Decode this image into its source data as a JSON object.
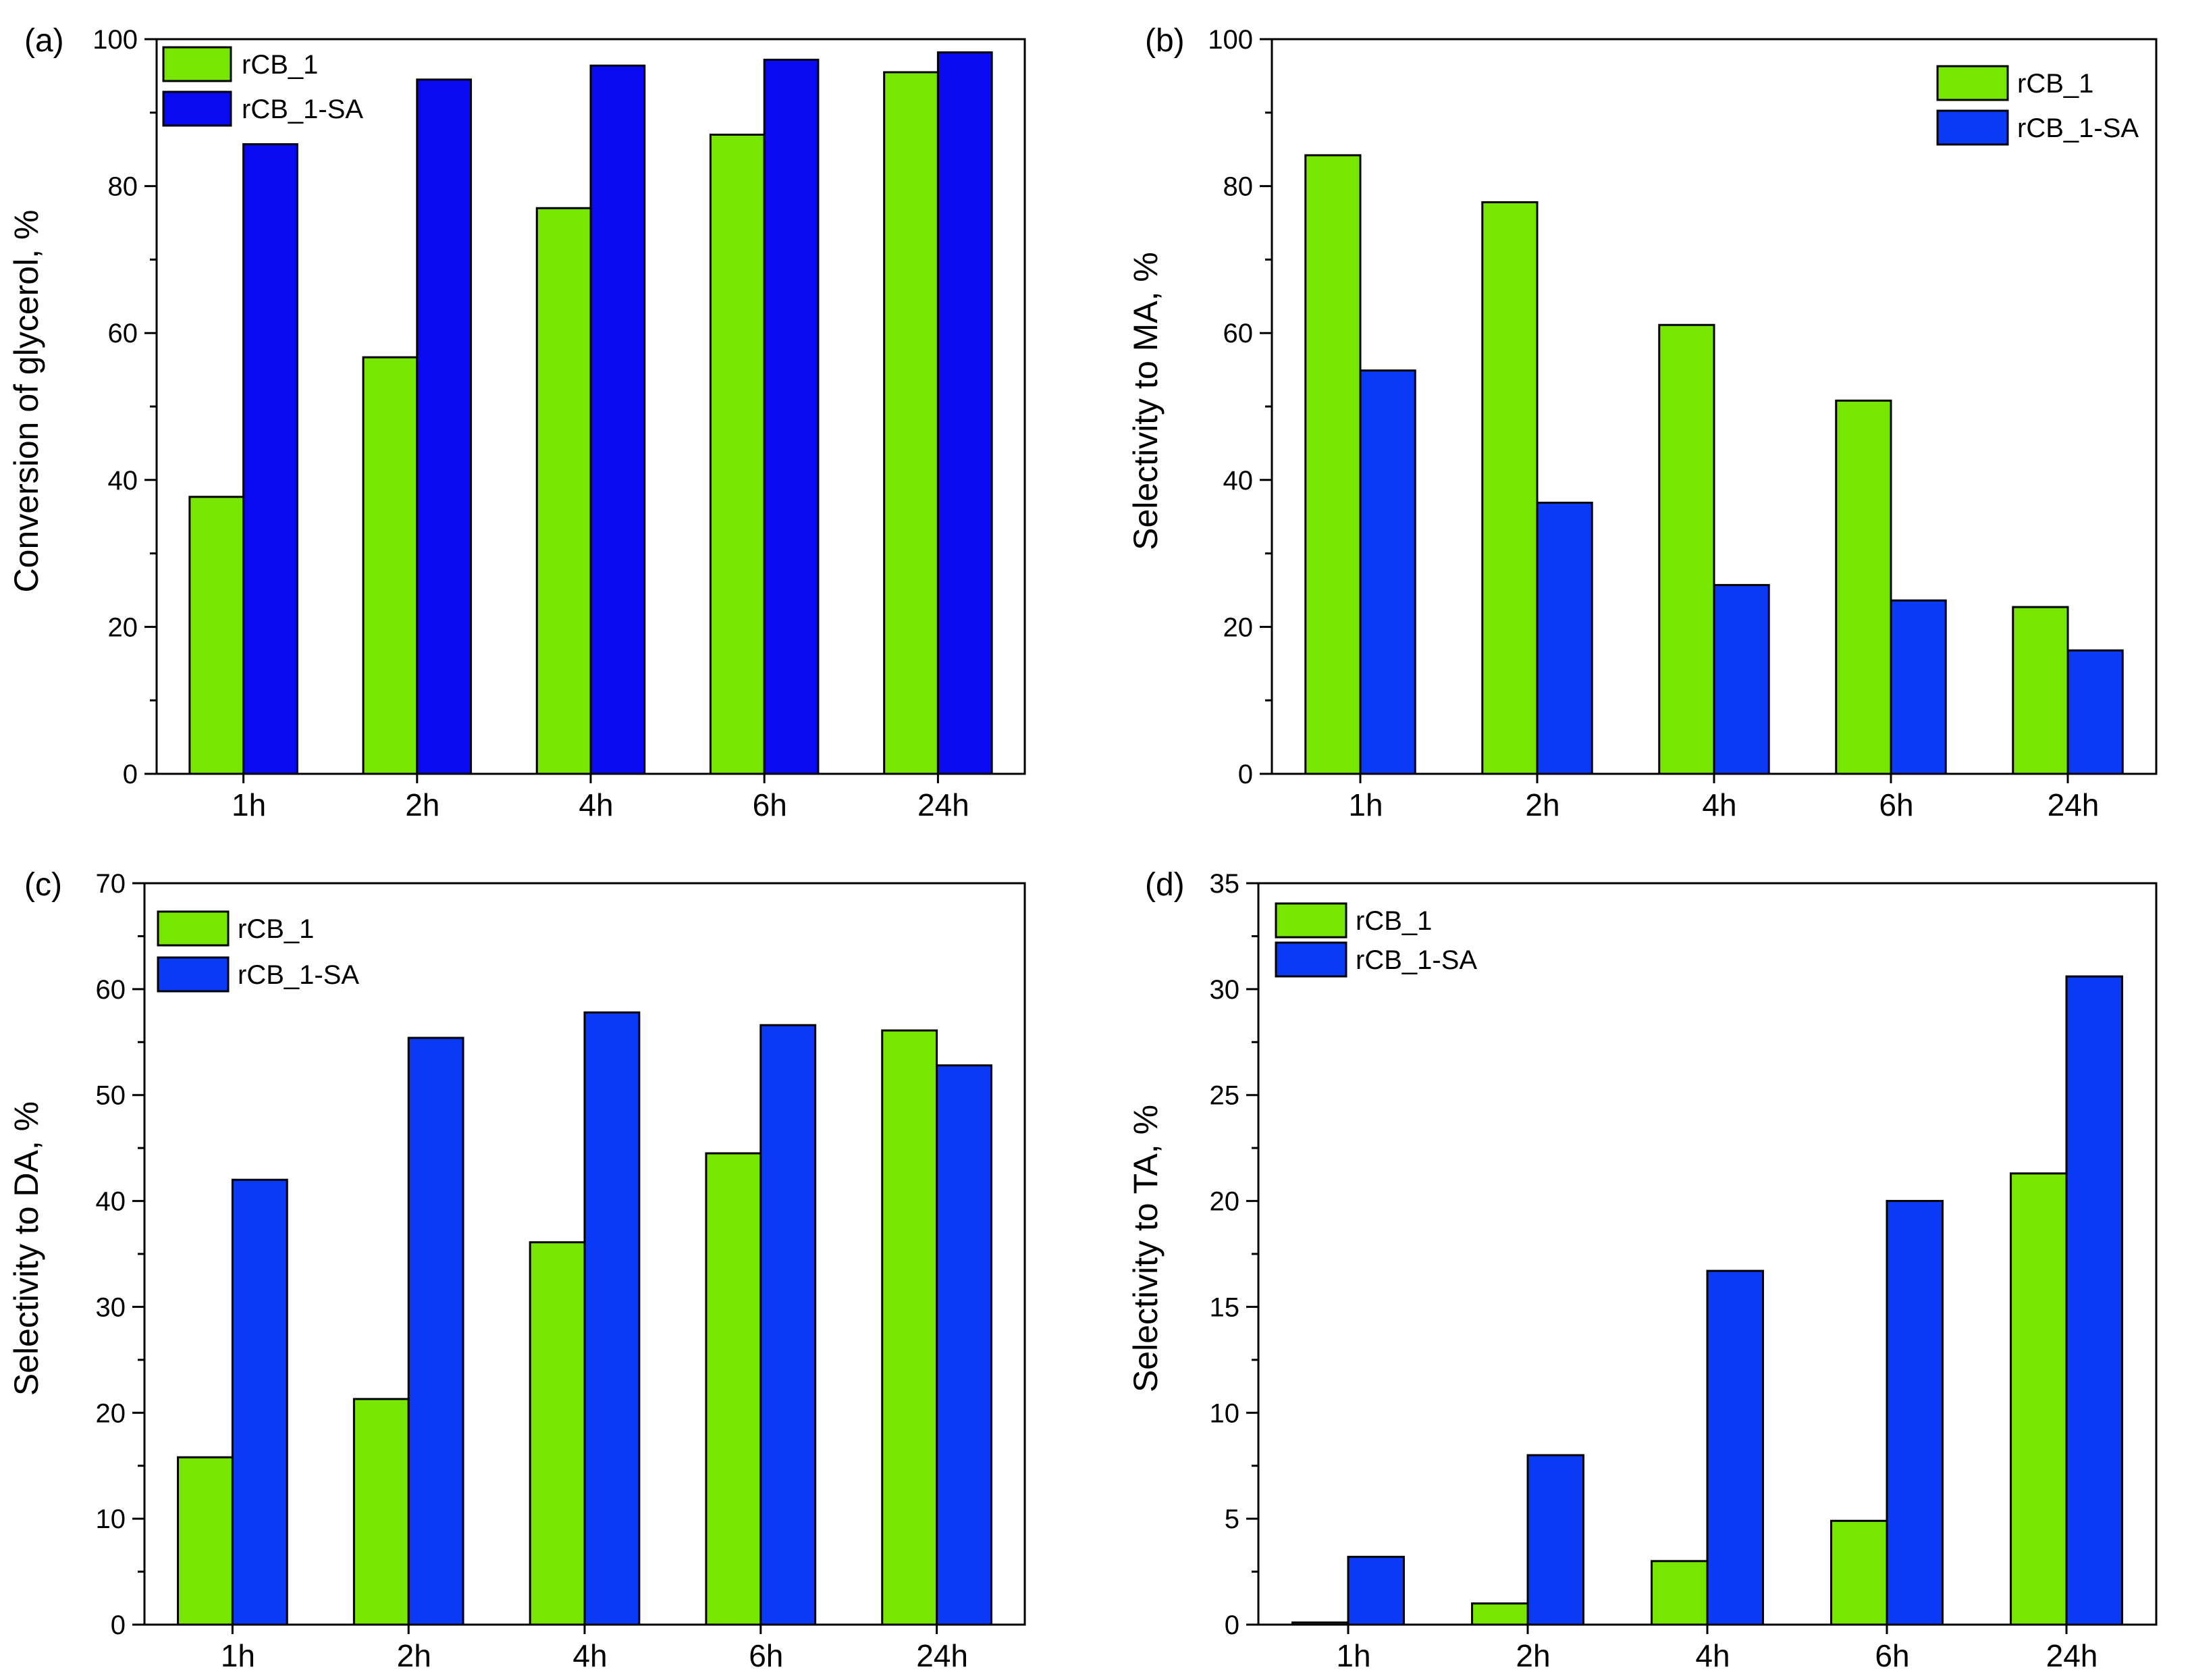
{
  "colors": {
    "series_green": "#77e600",
    "series_blue_a": "#0a0af2",
    "series_blue": "#0a3af6"
  },
  "chart_data": [
    {
      "id": "a",
      "panel_label": "(a)",
      "type": "bar",
      "categories": [
        "1h",
        "2h",
        "4h",
        "6h",
        "24h"
      ],
      "series": [
        {
          "name": "rCB_1",
          "values": [
            37.7,
            56.7,
            77.0,
            87.0,
            95.5
          ]
        },
        {
          "name": "rCB_1-SA",
          "values": [
            85.7,
            94.5,
            96.4,
            97.2,
            98.2
          ]
        }
      ],
      "ylabel": "Conversion of glycerol, %",
      "xlabel": "",
      "ylim": [
        0,
        100
      ],
      "yticks": [
        0,
        20,
        40,
        60,
        80,
        100
      ],
      "legend_position": "top-left",
      "grid": false
    },
    {
      "id": "b",
      "panel_label": "(b)",
      "type": "bar",
      "categories": [
        "1h",
        "2h",
        "4h",
        "6h",
        "24h"
      ],
      "series": [
        {
          "name": "rCB_1",
          "values": [
            84.2,
            77.8,
            61.1,
            50.8,
            22.7
          ]
        },
        {
          "name": "rCB_1-SA",
          "values": [
            54.9,
            36.9,
            25.7,
            23.6,
            16.8
          ]
        }
      ],
      "ylabel": "Selectivity to MA, %",
      "xlabel": "",
      "ylim": [
        0,
        100
      ],
      "yticks": [
        0,
        20,
        40,
        60,
        80,
        100
      ],
      "legend_position": "top-right",
      "grid": false
    },
    {
      "id": "c",
      "panel_label": "(c)",
      "type": "bar",
      "categories": [
        "1h",
        "2h",
        "4h",
        "6h",
        "24h"
      ],
      "series": [
        {
          "name": "rCB_1",
          "values": [
            15.8,
            21.3,
            36.1,
            44.5,
            56.1
          ]
        },
        {
          "name": "rCB_1-SA",
          "values": [
            42.0,
            55.4,
            57.8,
            56.6,
            52.8
          ]
        }
      ],
      "ylabel": "Selectivity to DA, %",
      "xlabel": "",
      "ylim": [
        0,
        70
      ],
      "yticks": [
        0,
        10,
        20,
        30,
        40,
        50,
        60,
        70
      ],
      "legend_position": "top-left",
      "grid": false
    },
    {
      "id": "d",
      "panel_label": "(d)",
      "type": "bar",
      "categories": [
        "1h",
        "2h",
        "4h",
        "6h",
        "24h"
      ],
      "series": [
        {
          "name": "rCB_1",
          "values": [
            0.1,
            1.0,
            3.0,
            4.9,
            21.3
          ]
        },
        {
          "name": "rCB_1-SA",
          "values": [
            3.2,
            8.0,
            16.7,
            20.0,
            30.6
          ]
        }
      ],
      "ylabel": "Selectivity to TA, %",
      "xlabel": "",
      "ylim": [
        0,
        35
      ],
      "yticks": [
        0,
        5,
        10,
        15,
        20,
        25,
        30,
        35
      ],
      "legend_position": "top-left",
      "grid": false
    }
  ]
}
